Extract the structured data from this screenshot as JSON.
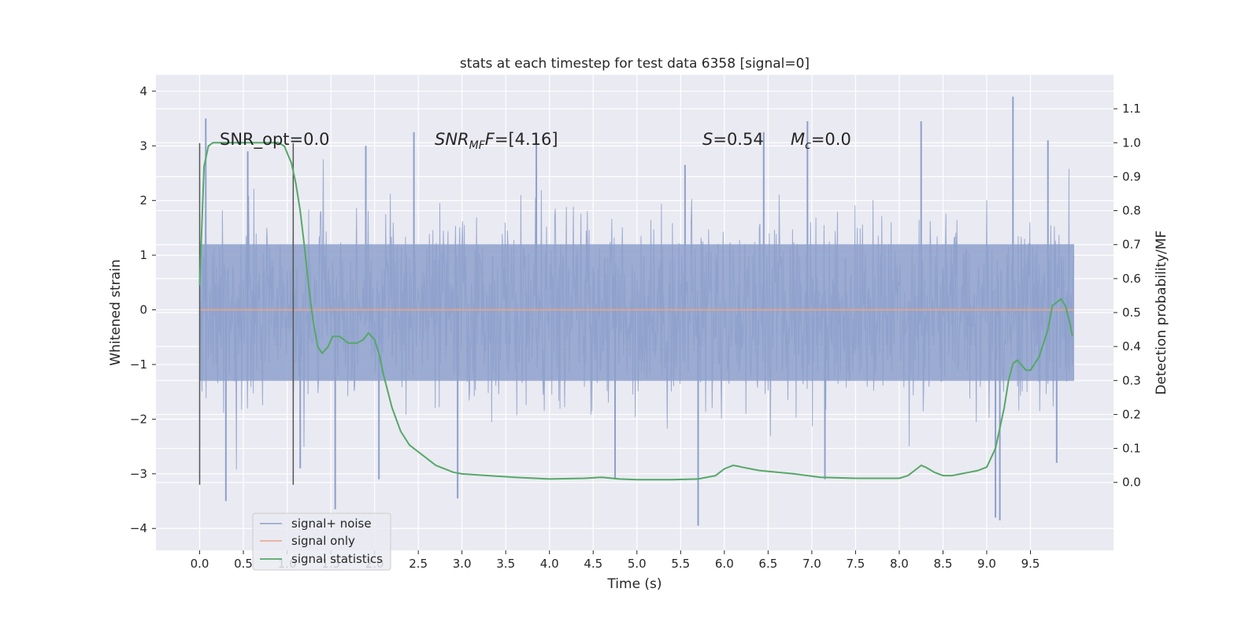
{
  "chart_data": {
    "type": "line",
    "title": "stats at each timestep for test data 6358 [signal=0]",
    "xlabel": "Time (s)",
    "ylabel": "Whitened strain",
    "ylabel_right": "Detection probability/MF",
    "xlim": [
      -0.5,
      10.45
    ],
    "ylim": [
      -4.4,
      4.3
    ],
    "ylim_right": [
      -0.2,
      1.2
    ],
    "x_ticks": [
      0.0,
      0.5,
      1.0,
      1.5,
      2.0,
      2.5,
      3.0,
      3.5,
      4.0,
      4.5,
      5.0,
      5.5,
      6.0,
      6.5,
      7.0,
      7.5,
      8.0,
      8.5,
      9.0,
      9.5
    ],
    "x_tick_labels": [
      "0.0",
      "0.5",
      "1.0",
      "1.5",
      "2.0",
      "2.5",
      "3.0",
      "3.5",
      "4.0",
      "4.5",
      "5.0",
      "5.5",
      "6.0",
      "6.5",
      "7.0",
      "7.5",
      "8.0",
      "8.5",
      "9.0",
      "9.5"
    ],
    "y_ticks": [
      -4,
      -3,
      -2,
      -1,
      0,
      1,
      2,
      3,
      4
    ],
    "y_tick_labels": [
      "−4",
      "−3",
      "−2",
      "−1",
      "0",
      "1",
      "2",
      "3",
      "4"
    ],
    "y_ticks_right": [
      0.0,
      0.1,
      0.2,
      0.3,
      0.4,
      0.5,
      0.6,
      0.7,
      0.8,
      0.9,
      1.0,
      1.1
    ],
    "y_tick_labels_right": [
      "0.0",
      "0.1",
      "0.2",
      "0.3",
      "0.4",
      "0.5",
      "0.6",
      "0.7",
      "0.8",
      "0.9",
      "1.0",
      "1.1"
    ],
    "grid": true,
    "legend_position": "lower-left",
    "annotations": {
      "snr_opt": "SNR_opt=0.0",
      "snr_mf_sym": "SNR",
      "snr_mf_sub": "MF",
      "snr_mf_val": "=[4.16]",
      "s_sym": "S",
      "s_val": "=0.54",
      "mc_sym": "M",
      "mc_sub": "c",
      "mc_val": "=0.0"
    },
    "vertical_markers": [
      0.0,
      1.07
    ],
    "series": [
      {
        "name": "signal+ noise",
        "color": "#8da0cb",
        "x_range": [
          0.0,
          10.0
        ],
        "noise_band": [
          -1.3,
          1.2
        ],
        "peaks": [
          {
            "x": 0.07,
            "y": 3.5
          },
          {
            "x": 0.3,
            "y": -3.5
          },
          {
            "x": 0.55,
            "y": 2.9
          },
          {
            "x": 1.15,
            "y": -2.9
          },
          {
            "x": 1.55,
            "y": -3.65
          },
          {
            "x": 1.9,
            "y": 3.0
          },
          {
            "x": 2.05,
            "y": -3.1
          },
          {
            "x": 2.45,
            "y": 3.25
          },
          {
            "x": 2.95,
            "y": -3.45
          },
          {
            "x": 3.85,
            "y": 3.2
          },
          {
            "x": 4.75,
            "y": -3.1
          },
          {
            "x": 5.55,
            "y": 2.65
          },
          {
            "x": 5.7,
            "y": -3.95
          },
          {
            "x": 6.45,
            "y": 3.25
          },
          {
            "x": 6.95,
            "y": 3.45
          },
          {
            "x": 7.15,
            "y": -3.1
          },
          {
            "x": 8.25,
            "y": 3.45
          },
          {
            "x": 9.1,
            "y": -3.8
          },
          {
            "x": 9.15,
            "y": -3.85
          },
          {
            "x": 9.3,
            "y": 3.9
          },
          {
            "x": 9.7,
            "y": 3.1
          },
          {
            "x": 9.8,
            "y": -2.8
          }
        ]
      },
      {
        "name": "signal only",
        "color": "#e5a58a",
        "x": [
          0.0,
          10.0
        ],
        "y": [
          0.0,
          0.0
        ]
      },
      {
        "name": "signal statistics",
        "color": "#55a868",
        "axis": "right",
        "x": [
          0.0,
          0.05,
          0.1,
          0.15,
          0.2,
          0.3,
          0.5,
          0.7,
          0.9,
          0.97,
          1.0,
          1.05,
          1.1,
          1.15,
          1.2,
          1.25,
          1.3,
          1.35,
          1.4,
          1.47,
          1.52,
          1.6,
          1.7,
          1.8,
          1.87,
          1.93,
          2.0,
          2.05,
          2.1,
          2.2,
          2.3,
          2.4,
          2.5,
          2.7,
          2.9,
          3.0,
          3.3,
          3.6,
          4.0,
          4.4,
          4.6,
          4.8,
          5.0,
          5.4,
          5.7,
          5.9,
          6.0,
          6.1,
          6.15,
          6.2,
          6.4,
          6.8,
          7.1,
          7.5,
          7.8,
          8.0,
          8.1,
          8.2,
          8.25,
          8.3,
          8.4,
          8.5,
          8.6,
          8.8,
          8.9,
          9.0,
          9.1,
          9.2,
          9.25,
          9.3,
          9.35,
          9.45,
          9.5,
          9.6,
          9.7,
          9.75,
          9.8,
          9.85,
          9.9,
          9.95,
          9.98
        ],
        "y": [
          0.58,
          0.93,
          0.99,
          1.0,
          1.0,
          1.0,
          1.0,
          1.0,
          1.0,
          0.99,
          0.97,
          0.94,
          0.88,
          0.8,
          0.69,
          0.57,
          0.47,
          0.4,
          0.38,
          0.4,
          0.43,
          0.43,
          0.41,
          0.41,
          0.42,
          0.44,
          0.42,
          0.38,
          0.32,
          0.22,
          0.15,
          0.11,
          0.09,
          0.05,
          0.03,
          0.025,
          0.02,
          0.015,
          0.01,
          0.012,
          0.015,
          0.01,
          0.008,
          0.008,
          0.01,
          0.02,
          0.04,
          0.05,
          0.048,
          0.045,
          0.035,
          0.025,
          0.015,
          0.012,
          0.012,
          0.012,
          0.02,
          0.04,
          0.05,
          0.045,
          0.03,
          0.02,
          0.02,
          0.03,
          0.035,
          0.045,
          0.1,
          0.22,
          0.3,
          0.35,
          0.36,
          0.33,
          0.33,
          0.37,
          0.45,
          0.52,
          0.53,
          0.54,
          0.52,
          0.47,
          0.43
        ]
      }
    ]
  }
}
